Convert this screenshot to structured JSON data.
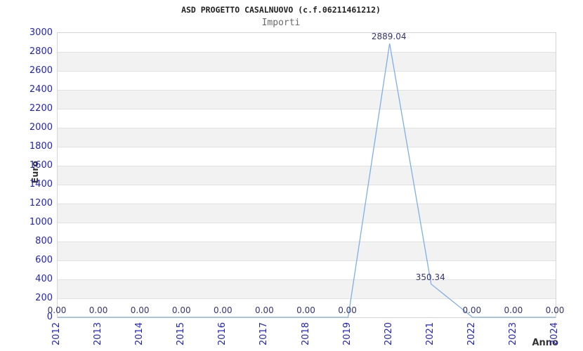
{
  "header": {
    "title": "ASD PROGETTO CASALNUOVO (c.f.06211461212)",
    "subtitle": "Importi"
  },
  "chart_data": {
    "type": "line",
    "title": "ASD PROGETTO CASALNUOVO (c.f.06211461212)",
    "subtitle": "Importi",
    "xlabel": "Anno",
    "ylabel": "Euro",
    "x": [
      2012,
      2013,
      2014,
      2015,
      2016,
      2017,
      2018,
      2019,
      2020,
      2021,
      2022,
      2023,
      2024
    ],
    "series": [
      {
        "name": "Importi",
        "values": [
          0,
          0,
          0,
          0,
          0,
          0,
          0,
          0,
          2889.04,
          350.34,
          0,
          0,
          0
        ]
      }
    ],
    "point_labels": [
      "0.00",
      "0.00",
      "0.00",
      "0.00",
      "0.00",
      "0.00",
      "0.00",
      "0.00",
      "2889.04",
      "350.34",
      "0.00",
      "0.00",
      "0.00"
    ],
    "ylim": [
      0,
      3000
    ],
    "yticks": [
      0,
      200,
      400,
      600,
      800,
      1000,
      1200,
      1400,
      1600,
      1800,
      2000,
      2200,
      2400,
      2600,
      2800,
      3000
    ],
    "ytick_step": 200,
    "grid": true,
    "band_pattern": "alternating 200-unit horizontal stripes, gray on 200-400, 600-800, 1000-1200, 1400-1600, 1800-2000, 2200-2400, 2600-2800",
    "legend": "none",
    "colors": {
      "line": "#7fafe6",
      "tick_label": "#2222cc",
      "point_label": "#333377",
      "band": "#f2f2f2",
      "grid": "#e2e2e2",
      "border": "#d4d4d4",
      "title": "#222222",
      "subtitle": "#6a6a6a",
      "axis_title": "#333333"
    }
  }
}
